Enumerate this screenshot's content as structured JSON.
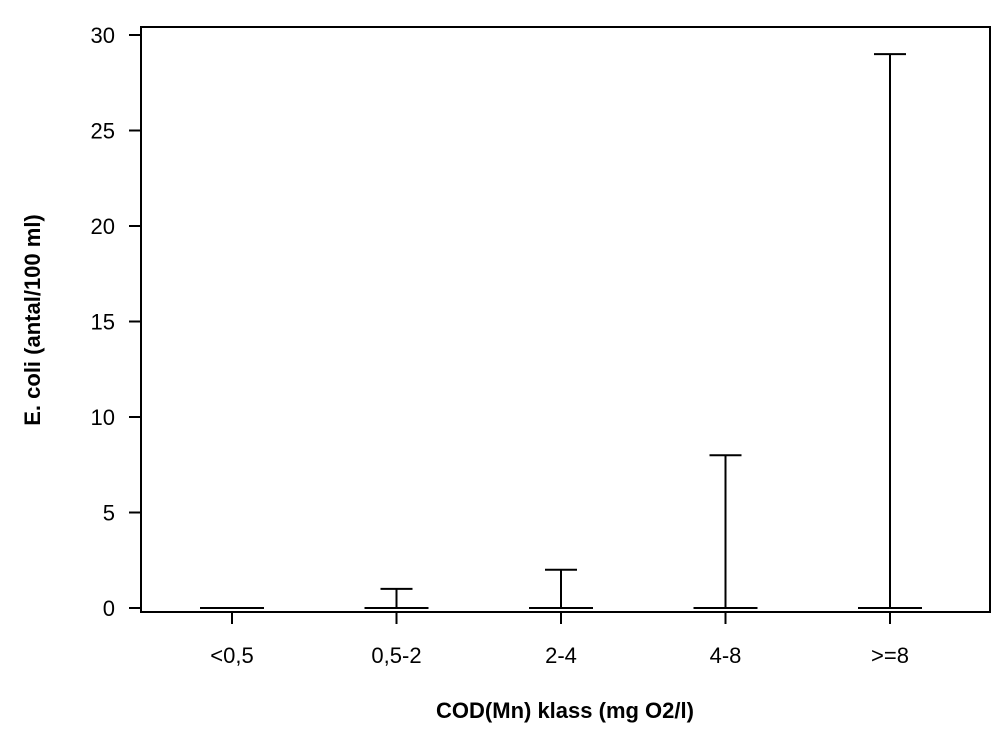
{
  "chart_data": {
    "type": "box",
    "title": "",
    "xlabel": "COD(Mn) klass (mg O2/l)",
    "ylabel": "E. coli (antal/100 ml)",
    "categories": [
      "<0,5",
      "0,5-2",
      "2-4",
      "4-8",
      ">=8"
    ],
    "series": [
      {
        "min": [
          0,
          0,
          0,
          0,
          0
        ],
        "median": [
          0,
          0,
          0,
          0,
          0
        ],
        "max": [
          0,
          1,
          2,
          8,
          29
        ]
      }
    ],
    "ylim": [
      0,
      30
    ],
    "yticks": [
      0,
      5,
      10,
      15,
      20,
      25,
      30
    ],
    "grid": false,
    "legend": "none"
  }
}
